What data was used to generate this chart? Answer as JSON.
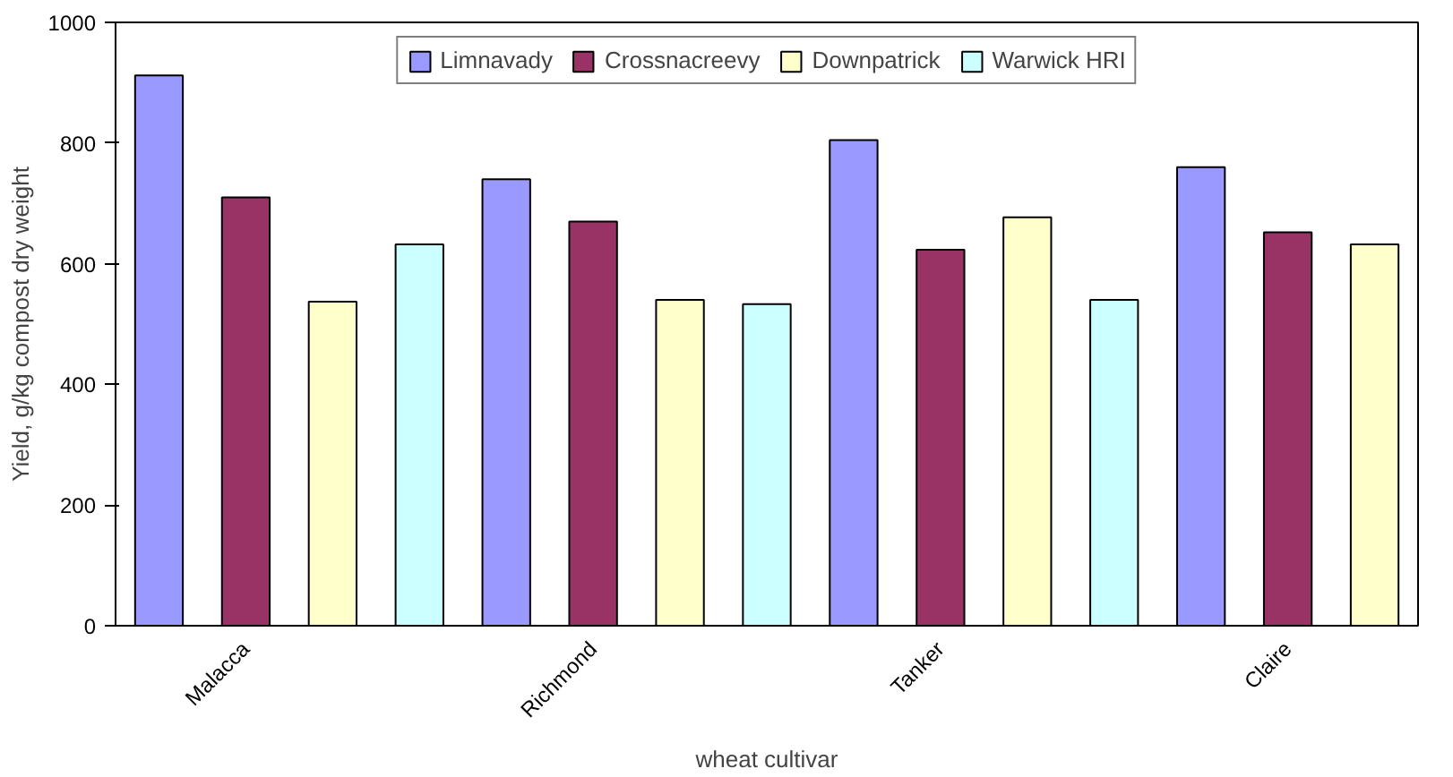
{
  "chart_data": {
    "type": "bar",
    "xlabel": "wheat cultivar",
    "ylabel": "Yield, g/kg compost dry weight",
    "categories": [
      null,
      "Malacca",
      null,
      null,
      null,
      "Richmond",
      null,
      null,
      null,
      "Tanker",
      null,
      null,
      null,
      "Claire",
      null
    ],
    "series": [
      {
        "name": "Limnavady",
        "color": "#9999ff",
        "values": [
          912,
          null,
          null,
          null,
          740,
          null,
          null,
          null,
          805,
          null,
          null,
          null,
          760,
          null,
          null
        ]
      },
      {
        "name": "Crossnacreevy",
        "color": "#993366",
        "values": [
          null,
          710,
          null,
          null,
          null,
          670,
          null,
          null,
          null,
          623,
          null,
          null,
          null,
          652,
          null
        ]
      },
      {
        "name": "Downpatrick",
        "color": "#ffffcc",
        "values": [
          null,
          null,
          537,
          null,
          null,
          null,
          540,
          null,
          null,
          null,
          677,
          null,
          null,
          null,
          632
        ]
      },
      {
        "name": "Warwick HRI",
        "color": "#ccffff",
        "values": [
          null,
          null,
          null,
          632,
          null,
          null,
          null,
          533,
          null,
          null,
          null,
          540,
          null,
          null,
          null
        ]
      }
    ],
    "ylim": [
      0,
      1000
    ],
    "yticks": [
      0,
      200,
      400,
      600,
      800,
      1000
    ],
    "grid": false,
    "legend": "top"
  }
}
